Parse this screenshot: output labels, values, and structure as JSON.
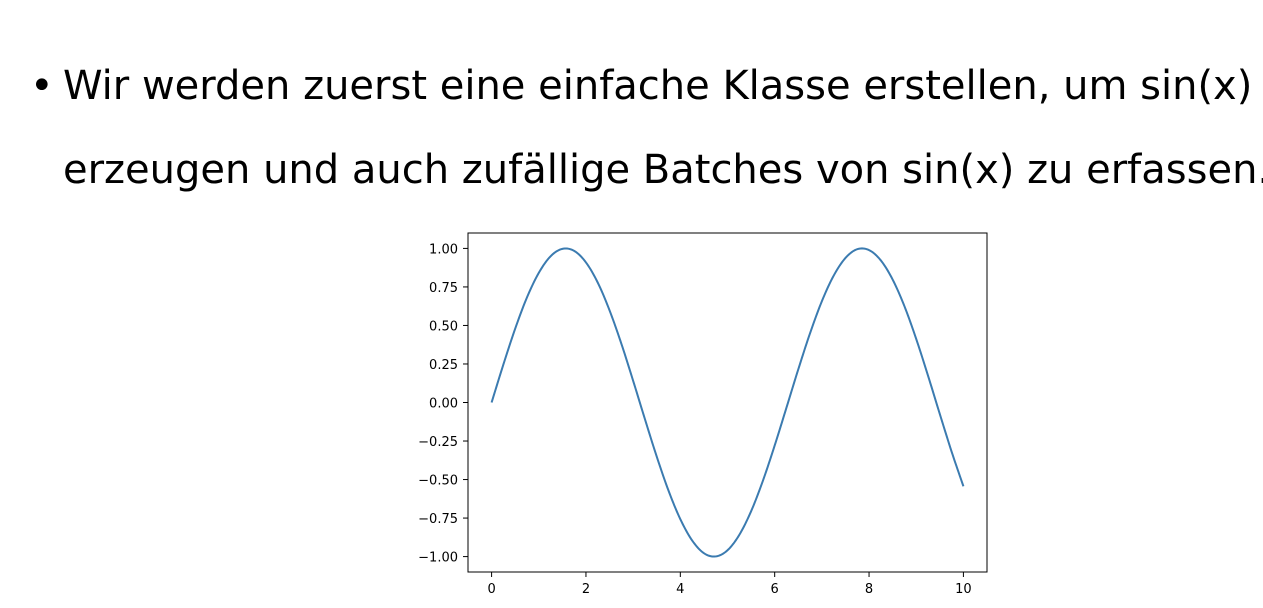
{
  "slide": {
    "bullet_symbol": "•",
    "line1": "Wir werden zuerst eine einfache Klasse erstellen, um sin(x) zu",
    "line2": "erzeugen und auch zufällige Batches von sin(x) zu erfassen."
  },
  "chart_data": {
    "type": "line",
    "title": "",
    "xlabel": "",
    "ylabel": "",
    "xlim": [
      -0.5,
      10.5
    ],
    "ylim": [
      -1.1,
      1.1
    ],
    "grid": false,
    "line_color": "#3b7bb0",
    "x_ticks": [
      0,
      2,
      4,
      6,
      8,
      10
    ],
    "x_tick_labels": [
      "0",
      "2",
      "4",
      "6",
      "8",
      "10"
    ],
    "y_ticks": [
      1.0,
      0.75,
      0.5,
      0.25,
      0.0,
      -0.25,
      -0.5,
      -0.75,
      -1.0
    ],
    "y_tick_labels": [
      "1.00",
      "0.75",
      "0.50",
      "0.25",
      "0.00",
      "−0.25",
      "−0.50",
      "−0.75",
      "−1.00"
    ],
    "series": [
      {
        "x": [
          0,
          0.25,
          0.5,
          0.75,
          1.0,
          1.25,
          1.5,
          1.75,
          2.0,
          2.25,
          2.5,
          2.75,
          3.0,
          3.25,
          3.5,
          3.75,
          4.0,
          4.25,
          4.5,
          4.75,
          5.0,
          5.25,
          5.5,
          5.75,
          6.0,
          6.25,
          6.5,
          6.75,
          7.0,
          7.25,
          7.5,
          7.75,
          8.0,
          8.25,
          8.5,
          8.75,
          9.0,
          9.25,
          9.5,
          9.75,
          10.0
        ],
        "y": [
          0.0,
          0.247,
          0.479,
          0.682,
          0.841,
          0.949,
          0.997,
          0.984,
          0.909,
          0.778,
          0.598,
          0.382,
          0.141,
          -0.108,
          -0.351,
          -0.572,
          -0.757,
          -0.895,
          -0.978,
          -0.999,
          -0.959,
          -0.859,
          -0.706,
          -0.508,
          -0.279,
          -0.033,
          0.215,
          0.45,
          0.657,
          0.823,
          0.938,
          0.995,
          0.989,
          0.922,
          0.798,
          0.625,
          0.412,
          0.174,
          -0.075,
          -0.319,
          -0.544
        ]
      }
    ]
  }
}
